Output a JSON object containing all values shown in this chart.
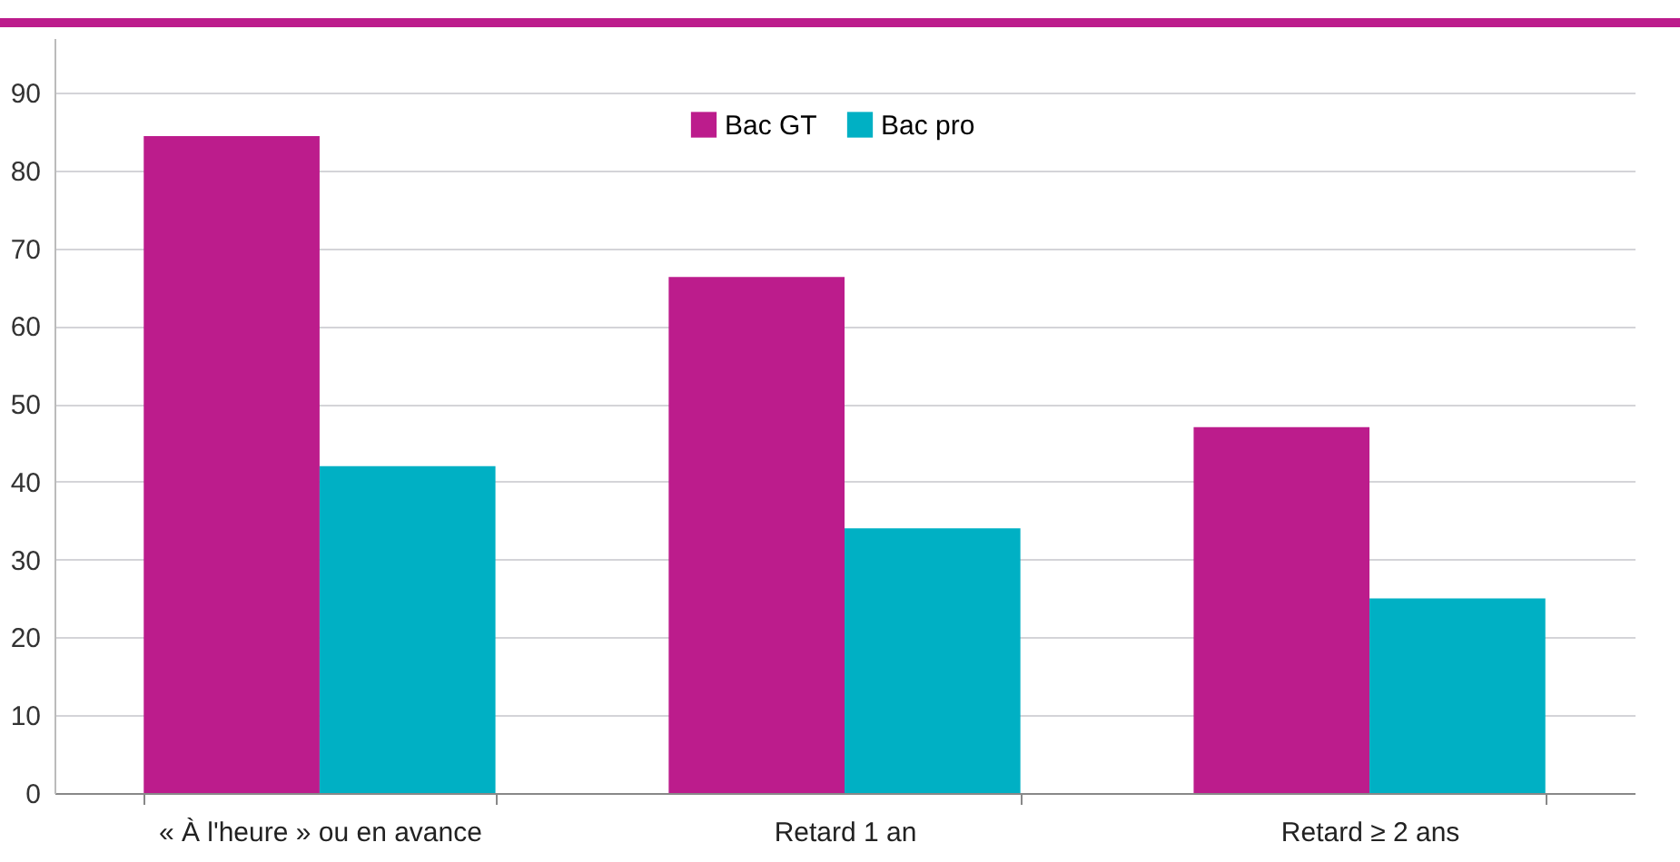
{
  "chart_data": {
    "type": "bar",
    "categories": [
      "« À l'heure » ou en avance",
      "Retard 1 an",
      "Retard ≥ 2 ans"
    ],
    "series": [
      {
        "name": "Bac GT",
        "color": "#bc1c8c",
        "values": [
          84.4,
          66.3,
          47
        ]
      },
      {
        "name": "Bac pro",
        "color": "#00b0c4",
        "values": [
          42,
          34,
          25
        ]
      }
    ],
    "ylim": [
      0,
      97
    ],
    "yticks": [
      0,
      10,
      20,
      30,
      40,
      50,
      60,
      70,
      80,
      90
    ],
    "grid": "y",
    "legend": "top"
  }
}
